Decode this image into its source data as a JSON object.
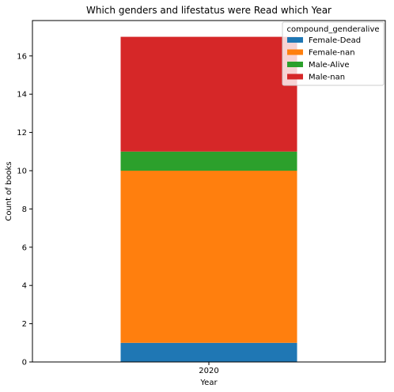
{
  "chart_data": {
    "type": "bar",
    "stacked": true,
    "title": "Which genders and lifestatus were Read which Year",
    "xlabel": "Year",
    "ylabel": "Count of books",
    "categories": [
      "2020"
    ],
    "ylim": [
      0,
      17.85
    ],
    "yticks": [
      0,
      2,
      4,
      6,
      8,
      10,
      12,
      14,
      16
    ],
    "grid": false,
    "legend": {
      "title": "compound_genderalive",
      "position": "top-right"
    },
    "series": [
      {
        "name": "Female-Dead",
        "values": [
          1
        ],
        "color": "#1f77b4"
      },
      {
        "name": "Female-nan",
        "values": [
          9
        ],
        "color": "#ff7f0e"
      },
      {
        "name": "Male-Alive",
        "values": [
          1
        ],
        "color": "#2ca02c"
      },
      {
        "name": "Male-nan",
        "values": [
          6
        ],
        "color": "#d62728"
      }
    ]
  }
}
